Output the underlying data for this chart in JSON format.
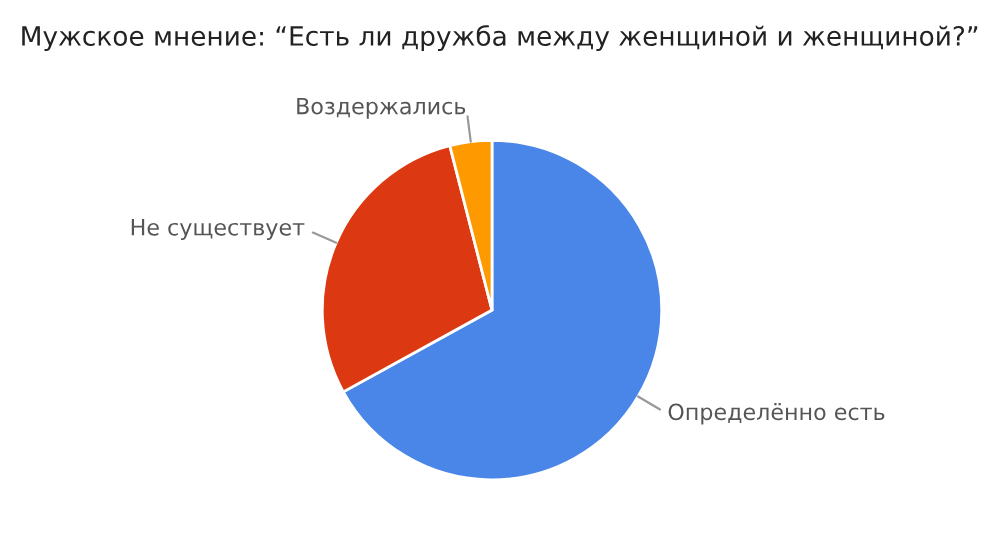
{
  "chart_data": {
    "type": "pie",
    "title": "Мужское мнение: “Есть ли дружба между женщиной и женщиной?”",
    "categories": [
      "Определённо есть",
      "Не существует",
      "Воздержались"
    ],
    "values": [
      67,
      29,
      4
    ],
    "colors": [
      "#4a86e8",
      "#dc3912",
      "#ff9900"
    ],
    "legend": false
  }
}
